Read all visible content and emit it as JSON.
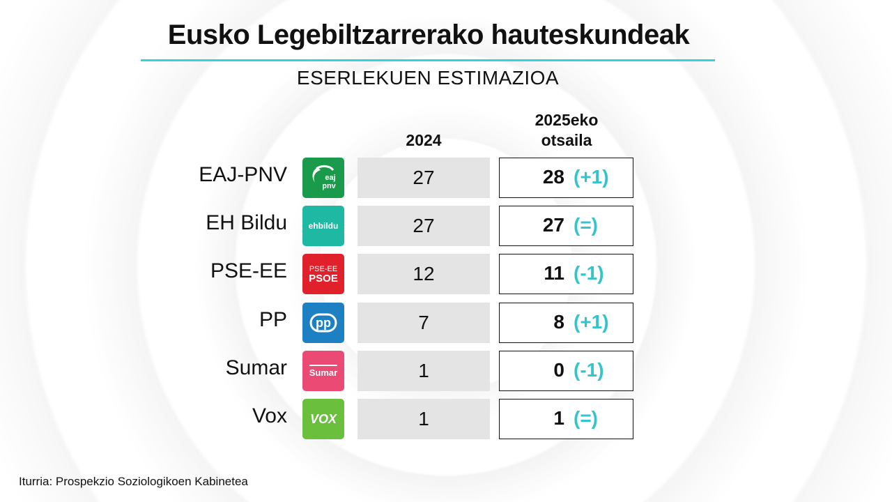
{
  "title": "Eusko Legebiltzarrerako hauteskundeak",
  "subtitle": "ESERLEKUEN ESTIMAZIOA",
  "source": "Iturria: Prospekzio Soziologikoen Kabinetea",
  "chart_data": {
    "type": "table",
    "title": "Eusko Legebiltzarrerako hauteskundeak",
    "subtitle": "ESERLEKUEN ESTIMAZIOA",
    "columns": [
      "2024",
      "2025eko otsaila"
    ],
    "column_labels": {
      "c2024": "2024",
      "c2025_line1": "2025eko",
      "c2025_line2": "otsaila"
    },
    "rows": [
      {
        "party": "EAJ-PNV",
        "logo_text": "eaj pnv",
        "logo_color": "#1a9b4b",
        "seats_2024": "27",
        "seats_2025": "28",
        "change": "(+1)"
      },
      {
        "party": "EH Bildu",
        "logo_text": "ehbildu",
        "logo_color": "#1fb8a3",
        "seats_2024": "27",
        "seats_2025": "27",
        "change": "(=)"
      },
      {
        "party": "PSE-EE",
        "logo_text": "PSE-EE PSOE",
        "logo_color": "#e0202a",
        "seats_2024": "12",
        "seats_2025": "11",
        "change": "(-1)"
      },
      {
        "party": "PP",
        "logo_text": "pp",
        "logo_color": "#1d80c3",
        "seats_2024": "7",
        "seats_2025": "8",
        "change": "(+1)"
      },
      {
        "party": "Sumar",
        "logo_text": "Sumar",
        "logo_color": "#ea4a73",
        "seats_2024": "1",
        "seats_2025": "0",
        "change": "(-1)"
      },
      {
        "party": "Vox",
        "logo_text": "VOX",
        "logo_color": "#6abf3c",
        "seats_2024": "1",
        "seats_2025": "1",
        "change": "(=)"
      }
    ]
  },
  "colors": {
    "accent": "#35d3d8",
    "change_text": "#35c4cc",
    "cell_gray": "#e4e4e4"
  }
}
